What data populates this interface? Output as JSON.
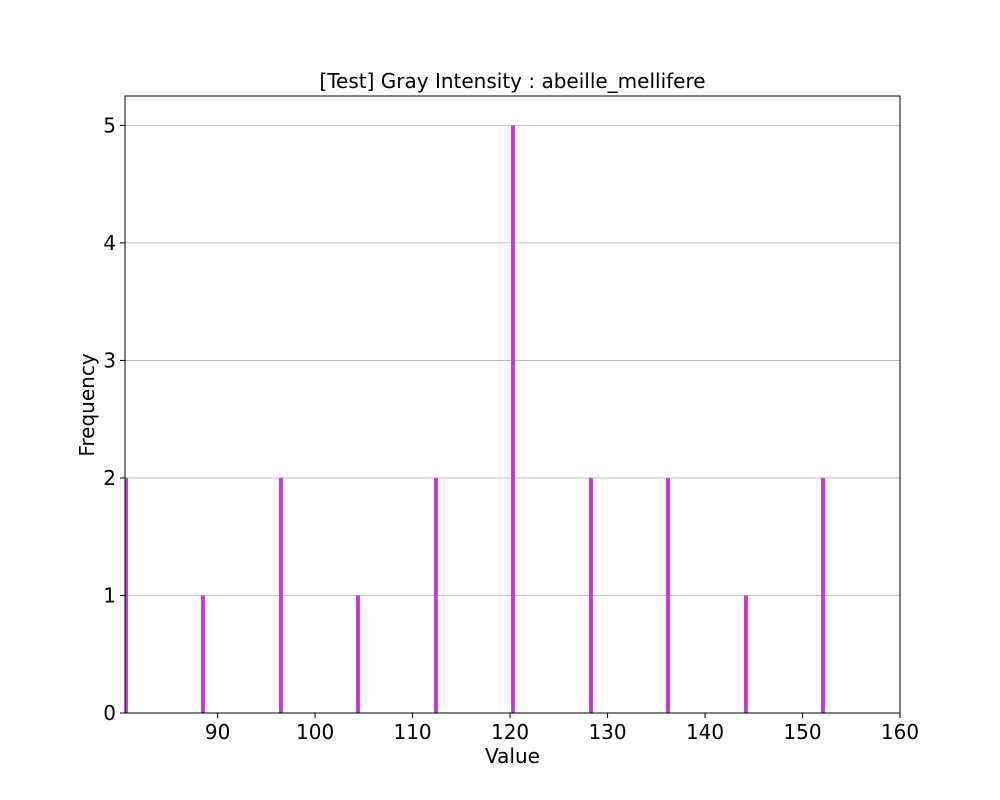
{
  "chart_data": {
    "type": "bar",
    "title": "[Test] Gray Intensity : abeille_mellifere",
    "xlabel": "Value",
    "ylabel": "Frequency",
    "xlim": [
      80.5,
      160
    ],
    "ylim": [
      0,
      5.25
    ],
    "xticks": [
      90,
      100,
      110,
      120,
      130,
      140,
      150,
      160
    ],
    "yticks": [
      0,
      1,
      2,
      3,
      4,
      5
    ],
    "grid": "y",
    "legend": "none",
    "bar_color": "#cc33dd",
    "bar_width": 0.4,
    "series": [
      {
        "x": [
          80.6,
          88.5,
          96.5,
          104.4,
          112.4,
          120.3,
          128.3,
          136.2,
          144.2,
          152.1
        ],
        "values": [
          2,
          1,
          2,
          1,
          2,
          5,
          2,
          2,
          1,
          2
        ]
      }
    ]
  }
}
